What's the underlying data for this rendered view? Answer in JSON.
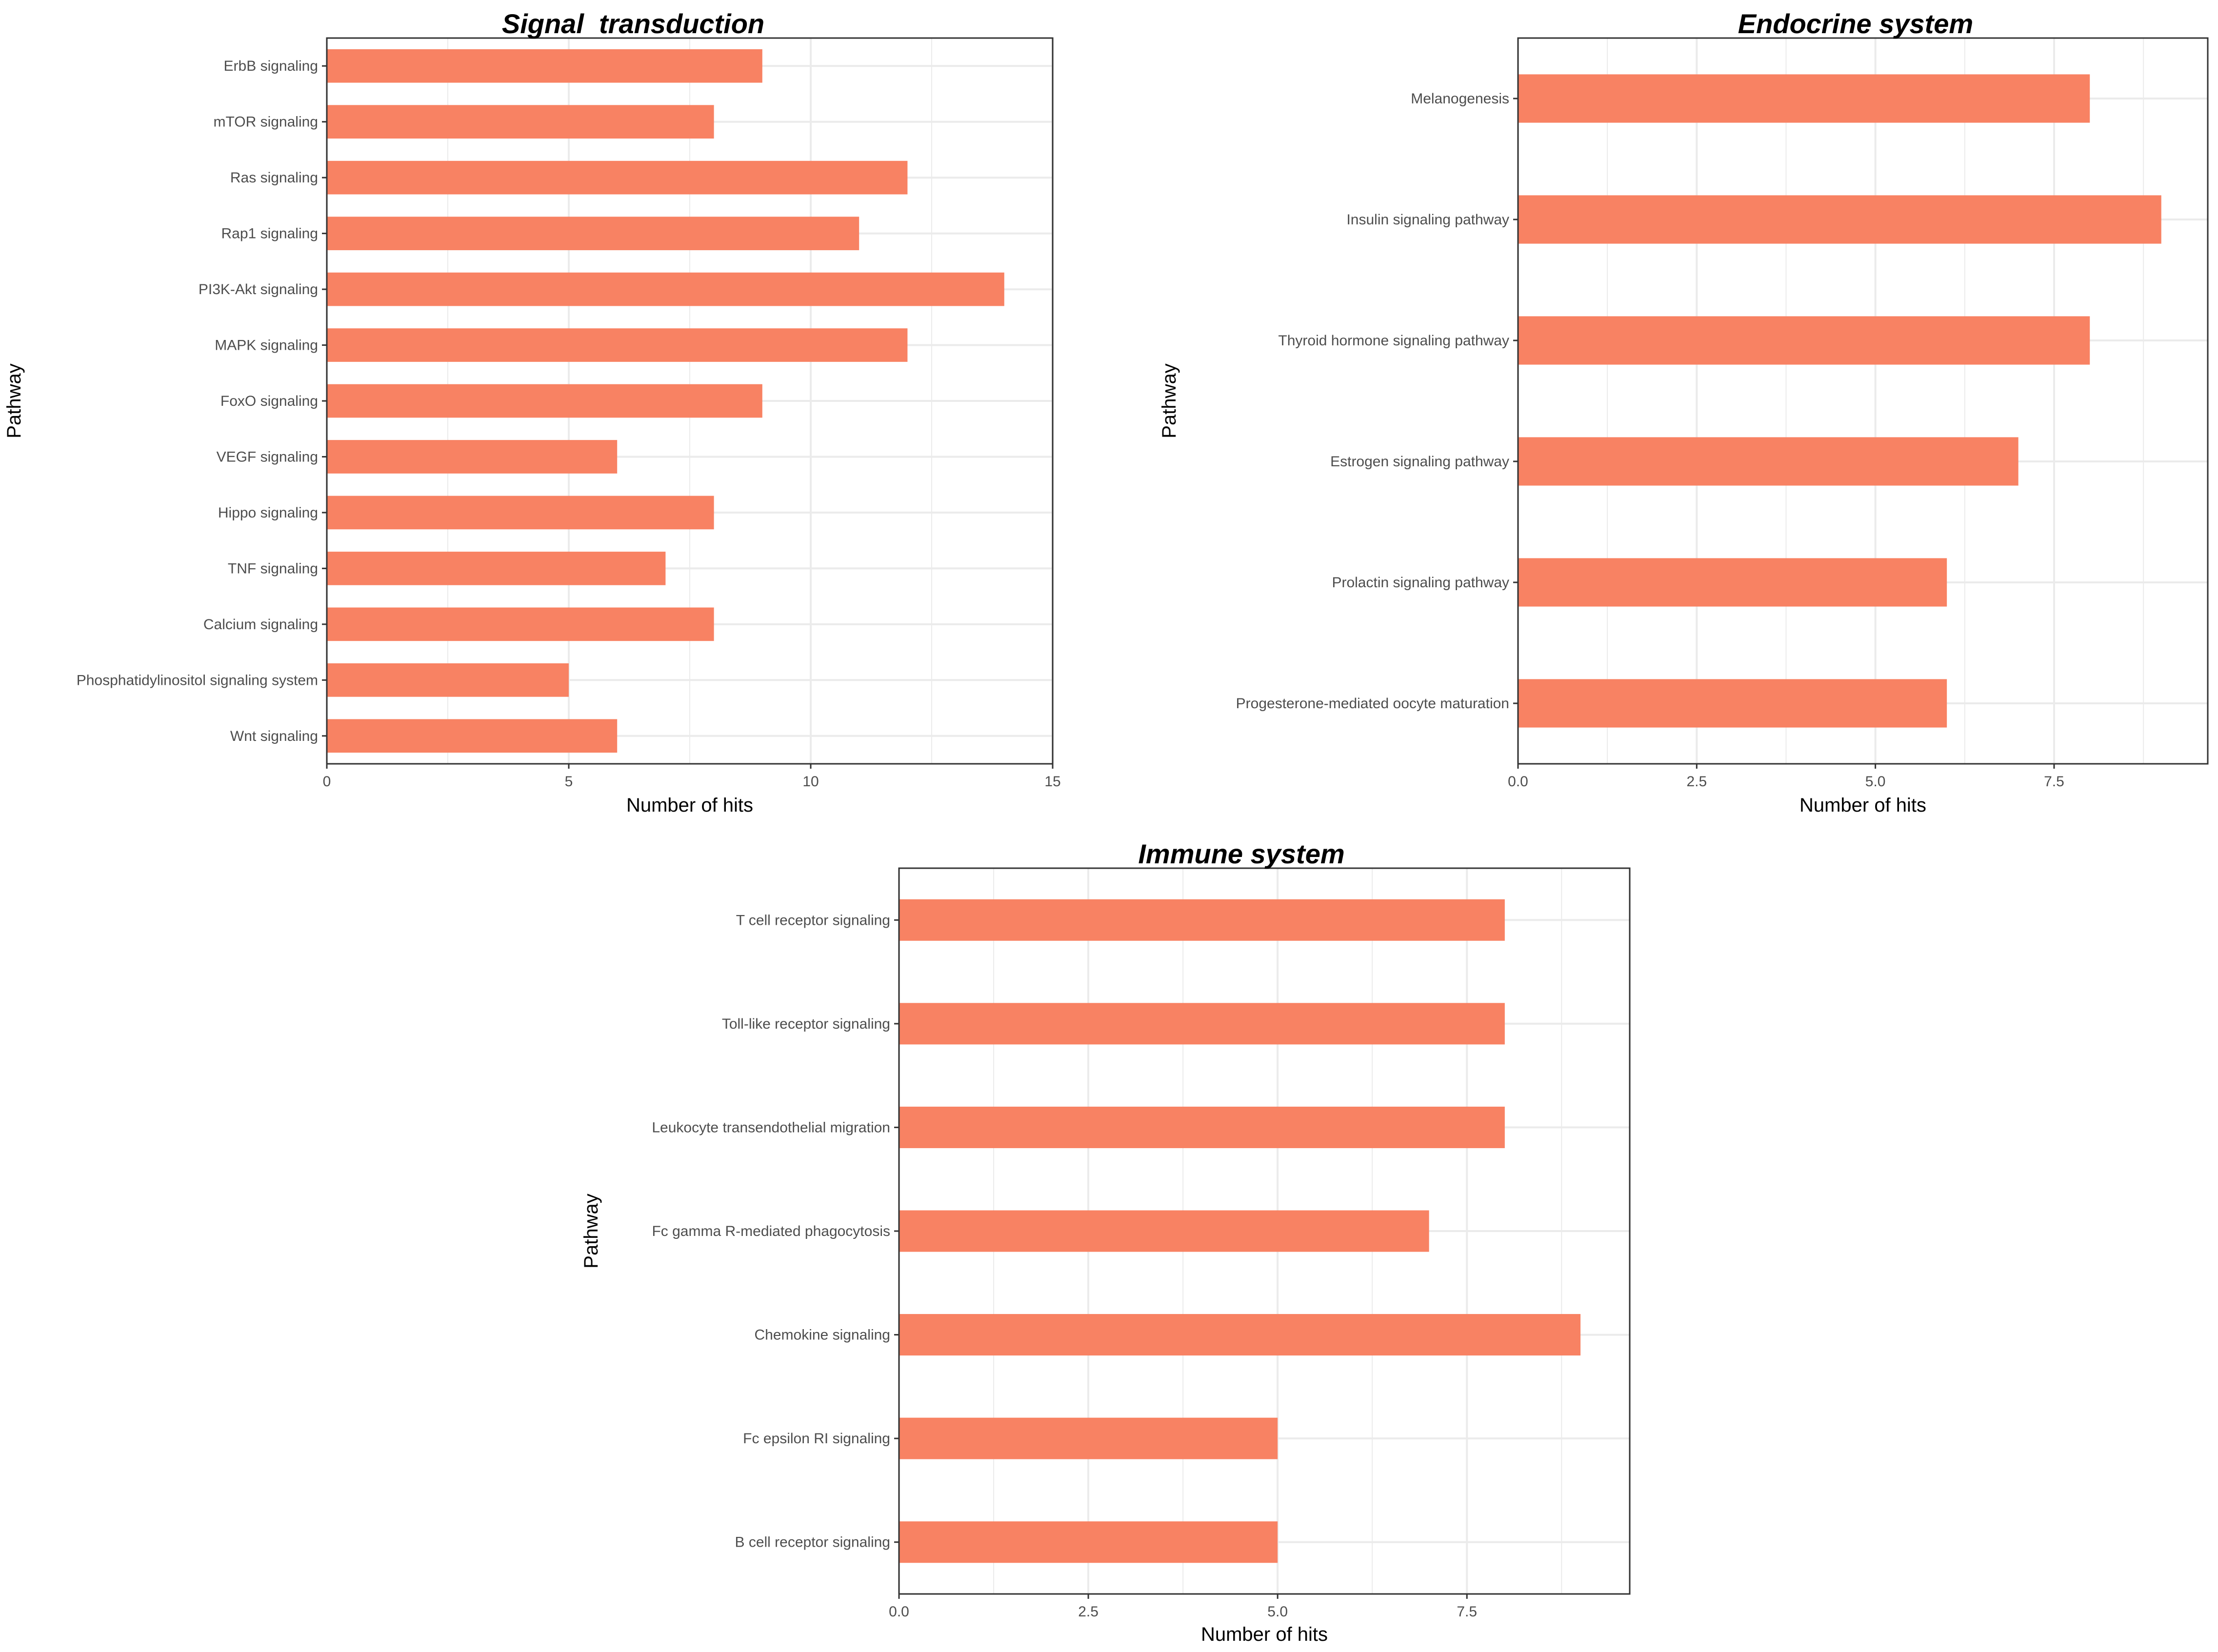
{
  "colors": {
    "bar": "#F88263",
    "grid": "#EBEBEB",
    "panel_border": "#333333",
    "tick_text": "#4d4d4d"
  },
  "chart_data": [
    {
      "type": "bar",
      "orientation": "horizontal",
      "title": "Signal  transduction",
      "xlabel": "Number of hits",
      "ylabel": "Pathway",
      "xlim": [
        0,
        15
      ],
      "xticks": [
        0,
        5,
        10,
        15
      ],
      "xtick_labels": [
        "0",
        "5",
        "10",
        "15"
      ],
      "grid": true,
      "categories": [
        "ErbB signaling",
        "mTOR signaling",
        "Ras signaling",
        "Rap1 signaling",
        "PI3K-Akt signaling",
        "MAPK signaling",
        "FoxO signaling",
        "VEGF signaling",
        "Hippo signaling",
        "TNF signaling",
        "Calcium signaling",
        "Phosphatidylinositol signaling system",
        "Wnt signaling"
      ],
      "values": [
        9,
        8,
        12,
        11,
        14,
        12,
        9,
        6,
        8,
        7,
        8,
        5,
        6
      ]
    },
    {
      "type": "bar",
      "orientation": "horizontal",
      "title": "Endocrine system",
      "xlabel": "Number of hits",
      "ylabel": "Pathway",
      "xlim": [
        0,
        9.65
      ],
      "xticks": [
        0,
        2.5,
        5,
        7.5
      ],
      "xtick_labels": [
        "0.0",
        "2.5",
        "5.0",
        "7.5"
      ],
      "grid": true,
      "categories": [
        "Melanogenesis",
        "Insulin signaling pathway",
        "Thyroid hormone signaling pathway",
        "Estrogen signaling pathway",
        "Prolactin signaling pathway",
        "Progesterone-mediated oocyte maturation"
      ],
      "values": [
        8,
        9,
        8,
        7,
        6,
        6
      ]
    },
    {
      "type": "bar",
      "orientation": "horizontal",
      "title": "Immune system",
      "xlabel": "Number of hits",
      "ylabel": "Pathway",
      "xlim": [
        0,
        9.65
      ],
      "xticks": [
        0,
        2.5,
        5,
        7.5
      ],
      "xtick_labels": [
        "0.0",
        "2.5",
        "5.0",
        "7.5"
      ],
      "grid": true,
      "categories": [
        "T cell receptor signaling",
        "Toll-like receptor signaling",
        "Leukocyte transendothelial migration",
        "Fc gamma R-mediated phagocytosis",
        "Chemokine signaling",
        "Fc epsilon RI signaling",
        "B cell receptor signaling"
      ],
      "values": [
        8,
        8,
        8,
        7,
        9,
        5,
        5
      ]
    }
  ]
}
